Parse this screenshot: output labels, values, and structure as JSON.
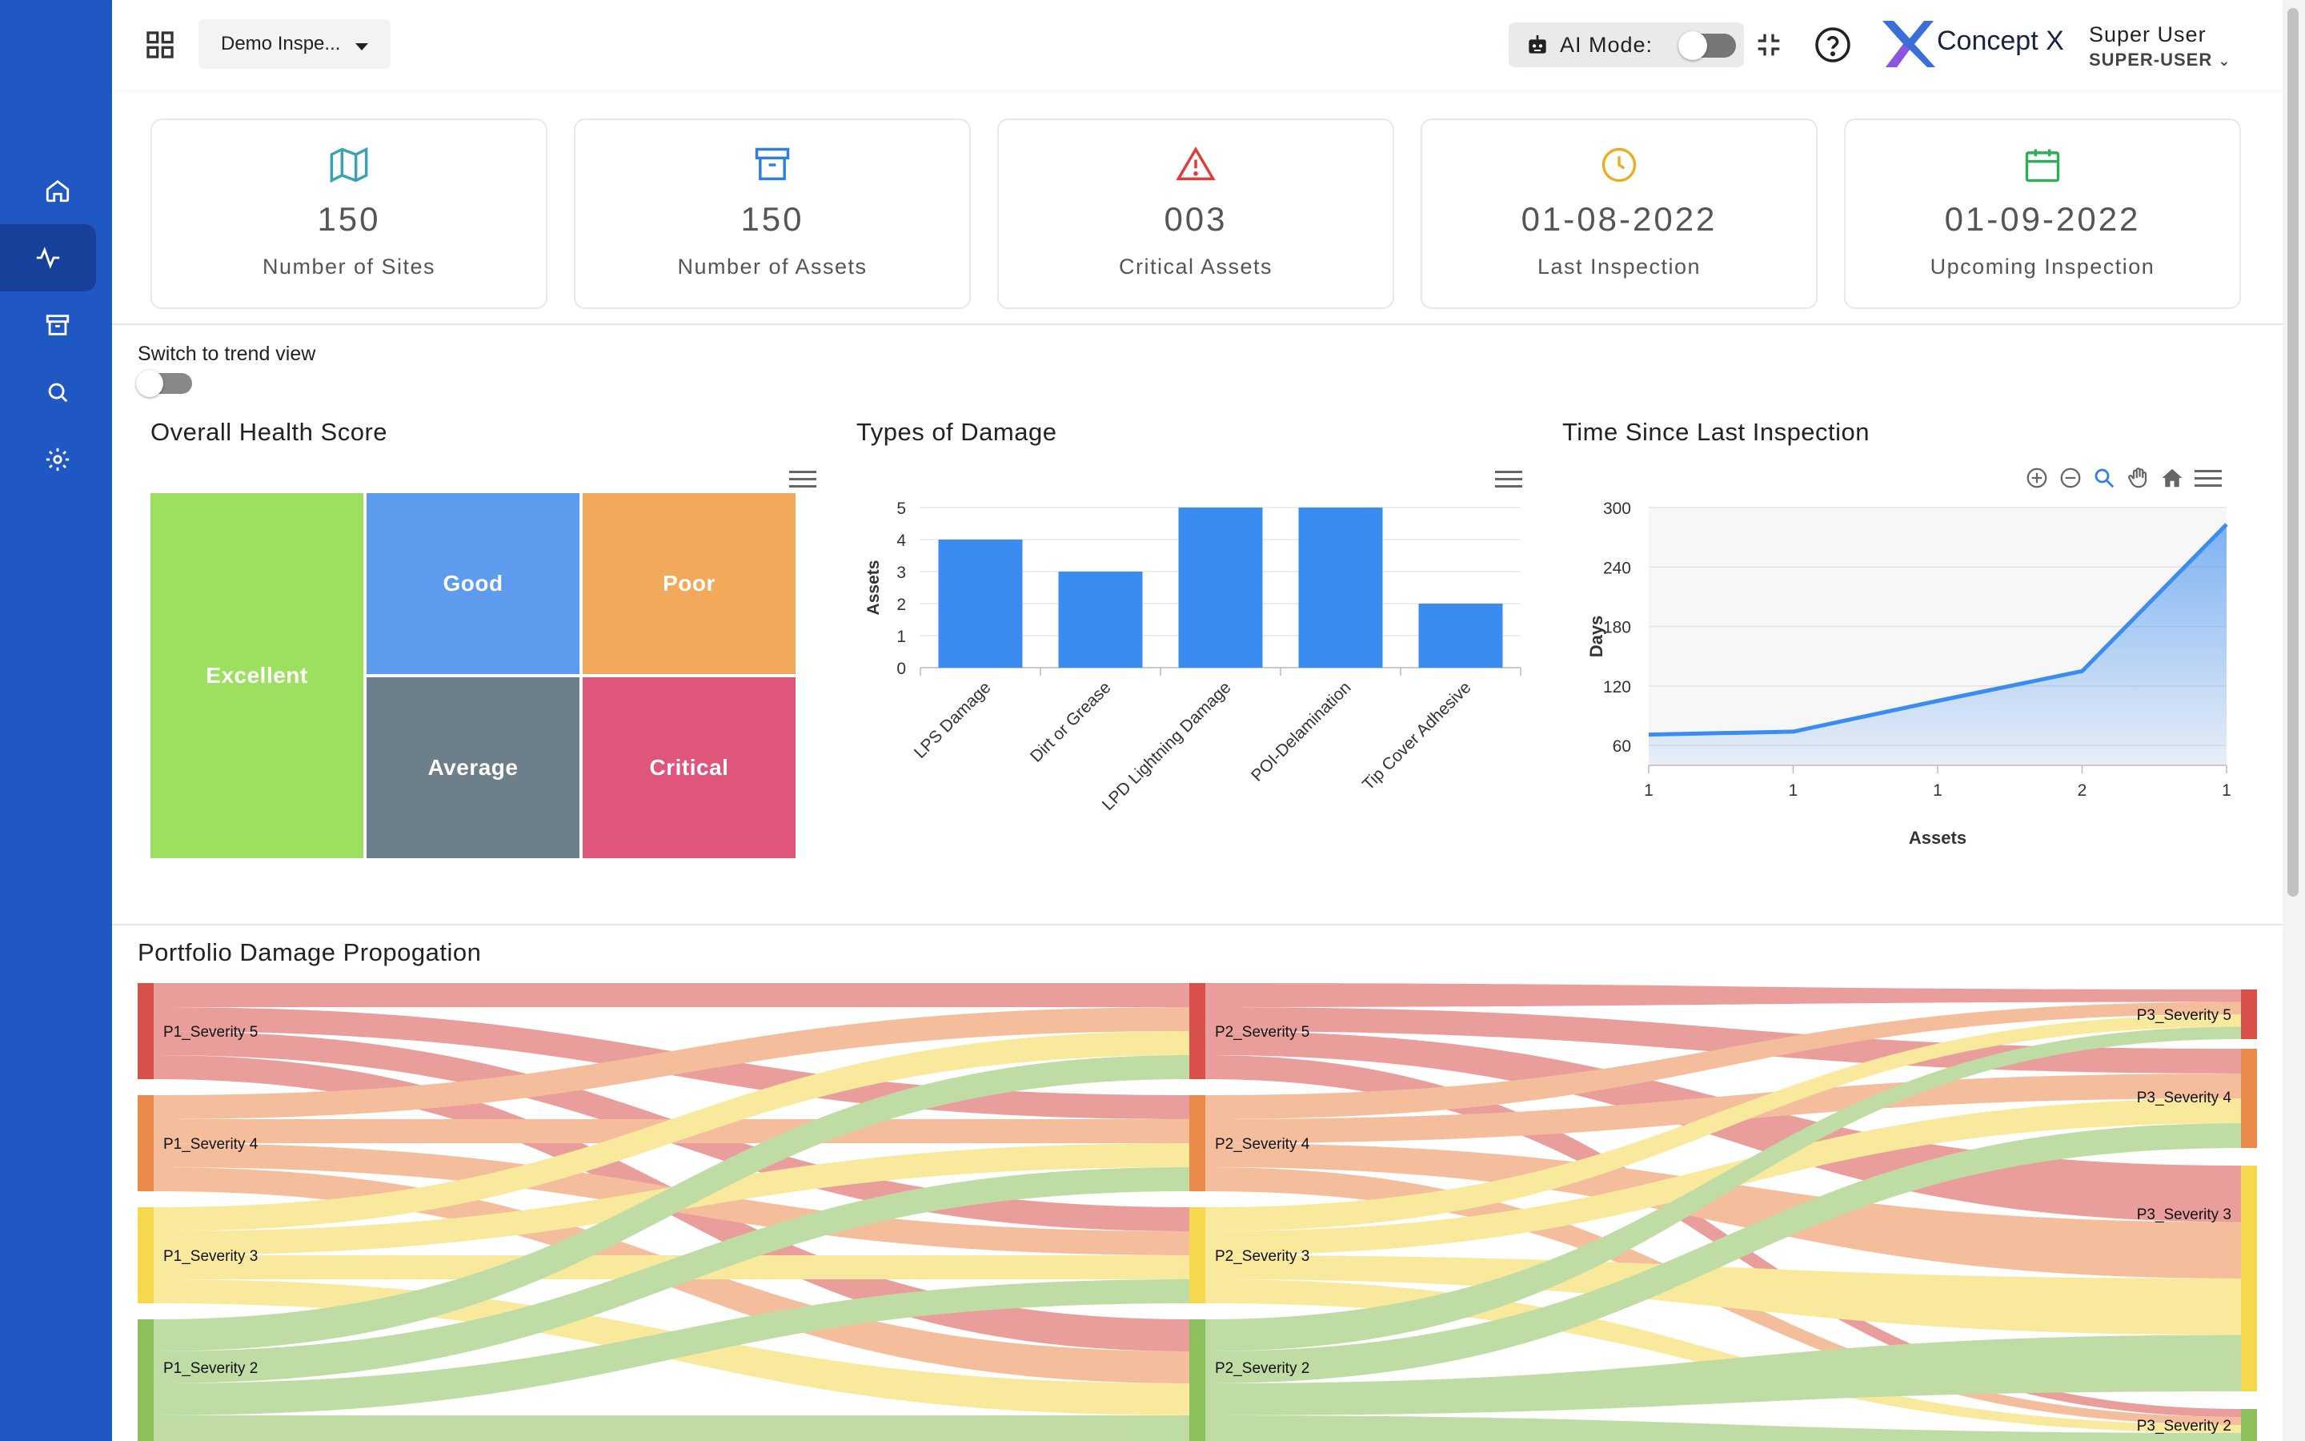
{
  "header": {
    "inspection_dropdown": "Demo Inspe...",
    "ai_mode_label": "AI Mode:",
    "brand_name": "Concept X",
    "user_name": "Super User",
    "user_role": "SUPER-USER"
  },
  "stats": [
    {
      "value": "150",
      "label": "Number of Sites",
      "icon": "map-icon",
      "color": "#3aa3b3"
    },
    {
      "value": "150",
      "label": "Number of Assets",
      "icon": "archive-icon",
      "color": "#2f7fe0"
    },
    {
      "value": "003",
      "label": "Critical Assets",
      "icon": "warning-icon",
      "color": "#e03a3a"
    },
    {
      "value": "01-08-2022",
      "label": "Last Inspection",
      "icon": "clock-icon",
      "color": "#e8b020"
    },
    {
      "value": "01-09-2022",
      "label": "Upcoming Inspection",
      "icon": "calendar-icon",
      "color": "#2fae5a"
    }
  ],
  "trend_toggle_label": "Switch to trend view",
  "health": {
    "title": "Overall Health Score",
    "cells": [
      {
        "label": "Excellent",
        "color": "#9de060"
      },
      {
        "label": "Good",
        "color": "#5d9bee"
      },
      {
        "label": "Poor",
        "color": "#f2a95a"
      },
      {
        "label": "Average",
        "color": "#6e7f8c"
      },
      {
        "label": "Critical",
        "color": "#e0557a"
      }
    ]
  },
  "damage": {
    "title": "Types of Damage"
  },
  "inspection": {
    "title": "Time Since Last Inspection"
  },
  "sankey": {
    "title": "Portfolio Damage Propogation",
    "left_nodes": [
      "P1_Severity 5",
      "P1_Severity 4",
      "P1_Severity 3",
      "P1_Severity 2"
    ],
    "mid_nodes": [
      "P2_Severity 5",
      "P2_Severity 4",
      "P2_Severity 3",
      "P2_Severity 2"
    ],
    "right_nodes": [
      "P3_Severity 5",
      "P3_Severity 4",
      "P3_Severity 3",
      "P3_Severity 2"
    ],
    "colors": {
      "severity5": "#d9504a",
      "severity4": "#ec8a4c",
      "severity3": "#f5d84c",
      "severity2": "#8cc05a"
    }
  },
  "chart_data": [
    {
      "type": "treemap",
      "title": "Overall Health Score",
      "categories": [
        "Excellent",
        "Good",
        "Poor",
        "Average",
        "Critical"
      ]
    },
    {
      "type": "bar",
      "title": "Types of Damage",
      "categories": [
        "LPS Damage",
        "Dirt or Grease",
        "LPD Lightning Damage",
        "POI-Delamination",
        "Tip Cover Adhesive"
      ],
      "values": [
        4,
        3,
        5,
        5,
        2
      ],
      "ylabel": "Assets",
      "yticks": [
        "0",
        "1",
        "2",
        "3",
        "4",
        "5"
      ],
      "ylim": [
        0,
        5
      ],
      "color": "#3b8cf0"
    },
    {
      "type": "area",
      "title": "Time Since Last Inspection",
      "x": [
        "1",
        "1",
        "1",
        "2",
        "1"
      ],
      "values": [
        71,
        74,
        105,
        135,
        283
      ],
      "xlabel": "Assets",
      "ylabel": "Days",
      "yticks": [
        "60",
        "120",
        "180",
        "240",
        "300"
      ],
      "ylim": [
        40,
        300
      ],
      "color": "#3b8cf0"
    }
  ]
}
